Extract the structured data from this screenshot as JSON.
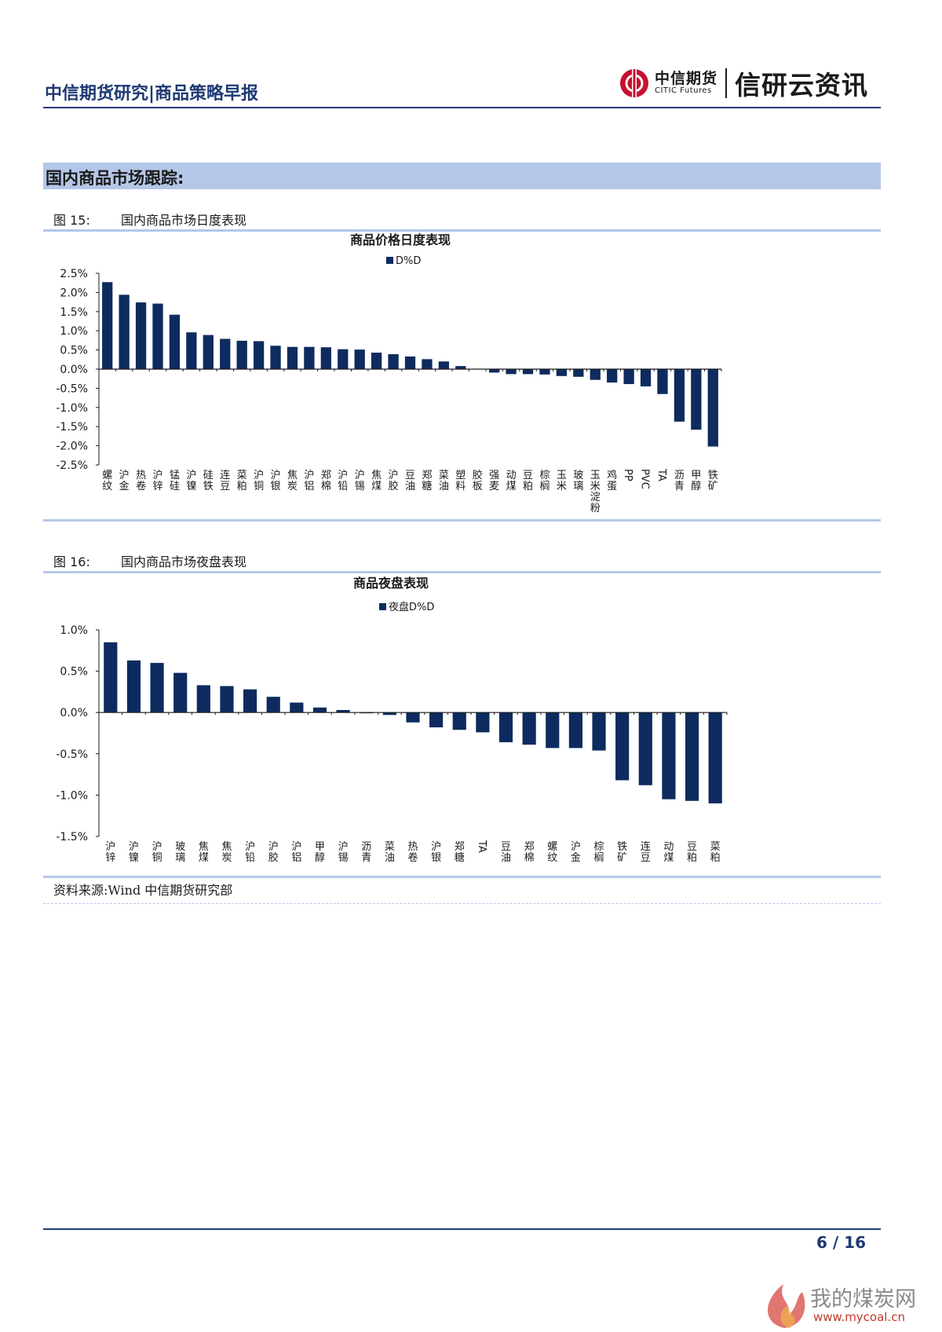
{
  "header": {
    "doc_title": "中信期货研究|商品策略早报",
    "brand_cn": "中信期货",
    "brand_en": "CITIC Futures",
    "brand_slogan": "信研云资讯",
    "brand_color": "#c8102e"
  },
  "section": {
    "title": "国内商品市场跟踪:"
  },
  "figure15": {
    "label": "图 15:",
    "caption": "国内商品市场日度表现"
  },
  "figure16": {
    "label": "图 16:",
    "caption": "国内商品市场夜盘表现"
  },
  "source": "资料来源:Wind  中信期货研究部",
  "footer": {
    "page": "6 / 16"
  },
  "watermark": {
    "name": "我的煤炭网",
    "url": "www.mycoal.cn"
  },
  "colors": {
    "bar": "#0d2b5e",
    "accent": "#1f3a73",
    "band": "#b4c7e7"
  },
  "chart_data": [
    {
      "type": "bar",
      "title": "商品价格日度表现",
      "legend": "D%D",
      "legend_position": "top-center",
      "grid": false,
      "ylim": [
        -2.5,
        2.5
      ],
      "yticks": [
        2.5,
        2.0,
        1.5,
        1.0,
        0.5,
        0.0,
        -0.5,
        -1.0,
        -1.5,
        -2.0,
        -2.5
      ],
      "ytick_labels": [
        "2.5%",
        "2.0%",
        "1.5%",
        "1.0%",
        "0.5%",
        "0.0%",
        "-0.5%",
        "-1.0%",
        "-1.5%",
        "-2.0%",
        "-2.5%"
      ],
      "categories": [
        "螺纹",
        "沪金",
        "热卷",
        "沪锌",
        "锰硅",
        "沪镍",
        "硅铁",
        "连豆",
        "菜粕",
        "沪铜",
        "沪银",
        "焦炭",
        "沪铝",
        "郑棉",
        "沪铅",
        "沪锡",
        "焦煤",
        "沪胶",
        "豆油",
        "郑糖",
        "菜油",
        "塑料",
        "胶板",
        "强麦",
        "动煤",
        "豆粕",
        "棕榈",
        "玉米",
        "玻璃",
        "玉米淀粉",
        "鸡蛋",
        "PP",
        "PVC",
        "TA",
        "沥青",
        "甲醇",
        "铁矿"
      ],
      "values": [
        2.27,
        1.94,
        1.74,
        1.71,
        1.42,
        0.96,
        0.89,
        0.79,
        0.74,
        0.73,
        0.61,
        0.58,
        0.58,
        0.57,
        0.52,
        0.51,
        0.43,
        0.39,
        0.33,
        0.26,
        0.2,
        0.08,
        0.01,
        -0.09,
        -0.13,
        -0.13,
        -0.14,
        -0.18,
        -0.2,
        -0.28,
        -0.35,
        -0.39,
        -0.45,
        -0.65,
        -1.37,
        -1.58,
        -2.02
      ]
    },
    {
      "type": "bar",
      "title": "商品夜盘表现",
      "legend": "夜盘D%D",
      "legend_position": "top-center",
      "grid": false,
      "ylim": [
        -1.5,
        1.0
      ],
      "yticks": [
        1.0,
        0.5,
        0.0,
        -0.5,
        -1.0,
        -1.5
      ],
      "ytick_labels": [
        "1.0%",
        "0.5%",
        "0.0%",
        "-0.5%",
        "-1.0%",
        "-1.5%"
      ],
      "categories": [
        "沪锌",
        "沪镍",
        "沪铜",
        "玻璃",
        "焦煤",
        "焦炭",
        "沪铅",
        "沪胶",
        "沪铝",
        "甲醇",
        "沪锡",
        "沥青",
        "菜油",
        "热卷",
        "沪银",
        "郑糖",
        "TA",
        "豆油",
        "郑棉",
        "螺纹",
        "沪金",
        "棕榈",
        "铁矿",
        "连豆",
        "动煤",
        "豆粕",
        "菜粕"
      ],
      "values": [
        0.85,
        0.63,
        0.6,
        0.48,
        0.33,
        0.32,
        0.28,
        0.19,
        0.12,
        0.06,
        0.03,
        0.0,
        -0.03,
        -0.12,
        -0.18,
        -0.21,
        -0.24,
        -0.36,
        -0.39,
        -0.43,
        -0.43,
        -0.46,
        -0.82,
        -0.88,
        -1.05,
        -1.07,
        -1.1
      ]
    }
  ]
}
